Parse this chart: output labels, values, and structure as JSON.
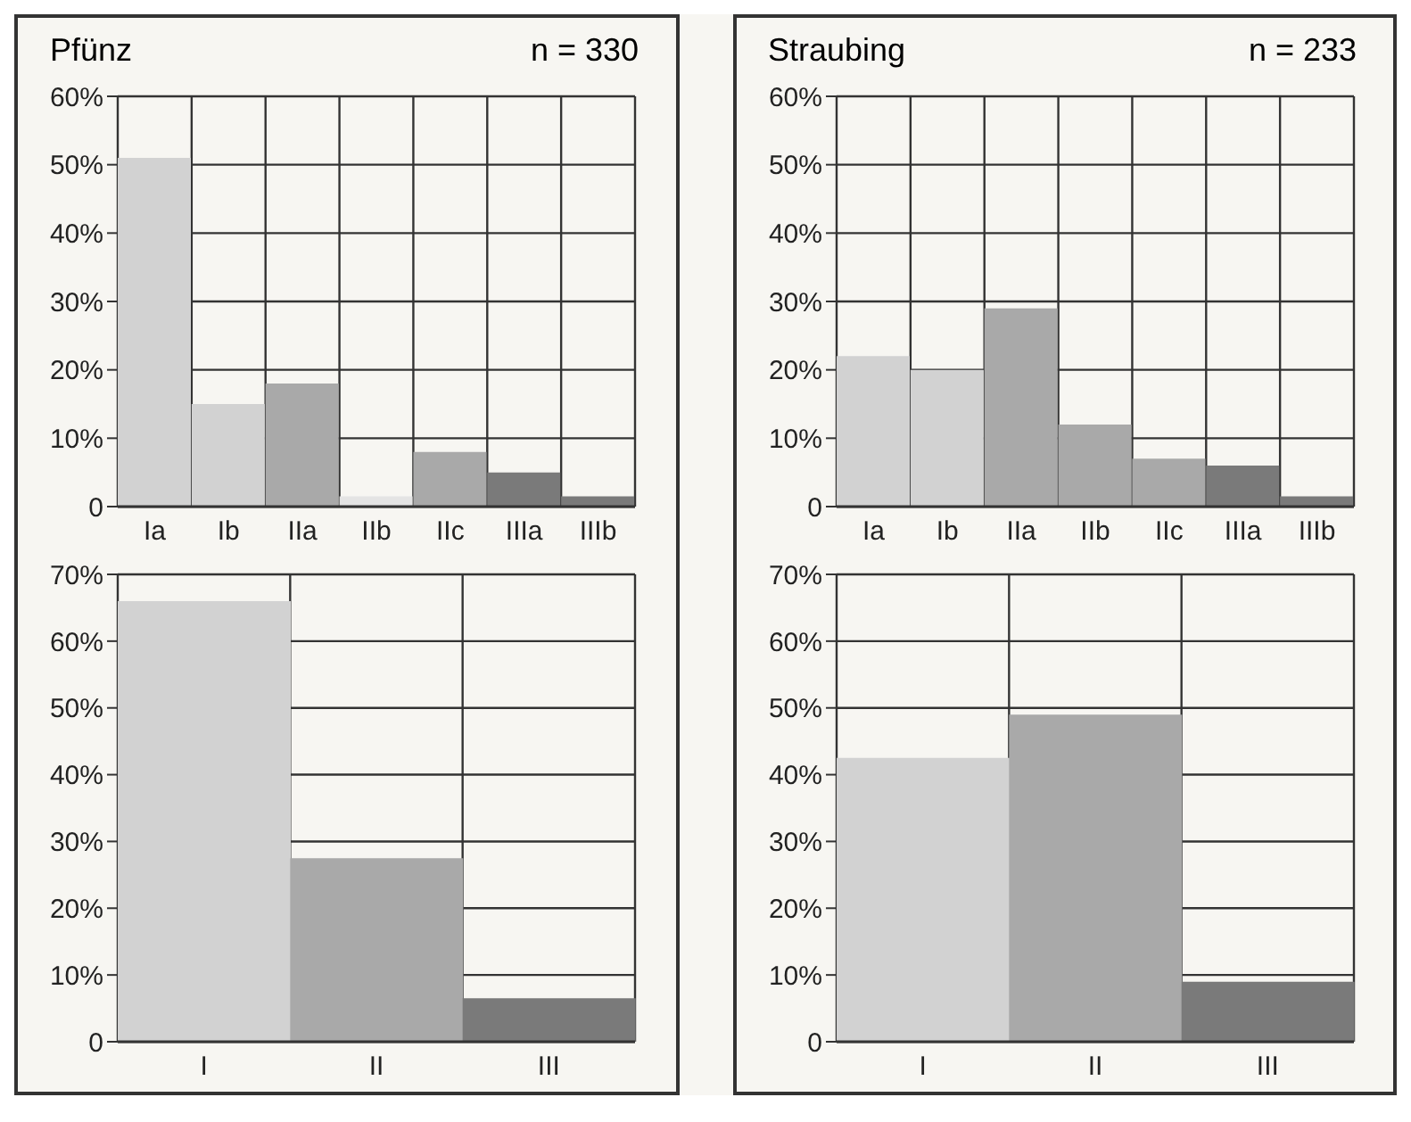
{
  "chart_data": [
    {
      "type": "bar",
      "title": "Pfünz",
      "subtitle": "n = 330",
      "categories": [
        "Ia",
        "Ib",
        "IIa",
        "IIb",
        "IIc",
        "IIIa",
        "IIIb"
      ],
      "values": [
        51,
        15,
        18,
        1.5,
        8,
        5,
        1.5
      ],
      "colors": [
        "#d2d2d2",
        "#d2d2d2",
        "#a9a9a9",
        "#e4e4e4",
        "#a9a9a9",
        "#7a7a7a",
        "#7a7a7a"
      ],
      "ylim": [
        0,
        60
      ],
      "yticks": [
        {
          "value": 0,
          "label": "0"
        },
        {
          "value": 10,
          "label": "10%"
        },
        {
          "value": 20,
          "label": "20%"
        },
        {
          "value": 30,
          "label": "30%"
        },
        {
          "value": 40,
          "label": "40%"
        },
        {
          "value": 50,
          "label": "50%"
        },
        {
          "value": 60,
          "label": "60%"
        }
      ],
      "grid": true
    },
    {
      "type": "bar",
      "title": "Straubing",
      "subtitle": "n = 233",
      "categories": [
        "Ia",
        "Ib",
        "IIa",
        "IIb",
        "IIc",
        "IIIa",
        "IIIb"
      ],
      "values": [
        22,
        20,
        29,
        12,
        7,
        6,
        1.5
      ],
      "colors": [
        "#d2d2d2",
        "#d2d2d2",
        "#a9a9a9",
        "#a9a9a9",
        "#a9a9a9",
        "#7a7a7a",
        "#7a7a7a"
      ],
      "ylim": [
        0,
        60
      ],
      "yticks": [
        {
          "value": 0,
          "label": "0"
        },
        {
          "value": 10,
          "label": "10%"
        },
        {
          "value": 20,
          "label": "20%"
        },
        {
          "value": 30,
          "label": "30%"
        },
        {
          "value": 40,
          "label": "40%"
        },
        {
          "value": 50,
          "label": "50%"
        },
        {
          "value": 60,
          "label": "60%"
        }
      ],
      "grid": true
    },
    {
      "type": "bar",
      "categories": [
        "I",
        "II",
        "III"
      ],
      "values": [
        66,
        27.5,
        6.5
      ],
      "colors": [
        "#d2d2d2",
        "#a9a9a9",
        "#7a7a7a"
      ],
      "ylim": [
        0,
        70
      ],
      "yticks": [
        {
          "value": 0,
          "label": "0"
        },
        {
          "value": 10,
          "label": "10%"
        },
        {
          "value": 20,
          "label": "20%"
        },
        {
          "value": 30,
          "label": "30%"
        },
        {
          "value": 40,
          "label": "40%"
        },
        {
          "value": 50,
          "label": "50%"
        },
        {
          "value": 60,
          "label": "60%"
        },
        {
          "value": 70,
          "label": "70%"
        }
      ],
      "grid": true
    },
    {
      "type": "bar",
      "categories": [
        "I",
        "II",
        "III"
      ],
      "values": [
        42.5,
        49,
        9
      ],
      "colors": [
        "#d2d2d2",
        "#a9a9a9",
        "#7a7a7a"
      ],
      "ylim": [
        0,
        70
      ],
      "yticks": [
        {
          "value": 0,
          "label": "0"
        },
        {
          "value": 10,
          "label": "10%"
        },
        {
          "value": 20,
          "label": "20%"
        },
        {
          "value": 30,
          "label": "30%"
        },
        {
          "value": 40,
          "label": "40%"
        },
        {
          "value": 50,
          "label": "50%"
        },
        {
          "value": 60,
          "label": "60%"
        },
        {
          "value": 70,
          "label": "70%"
        }
      ],
      "grid": true
    }
  ]
}
